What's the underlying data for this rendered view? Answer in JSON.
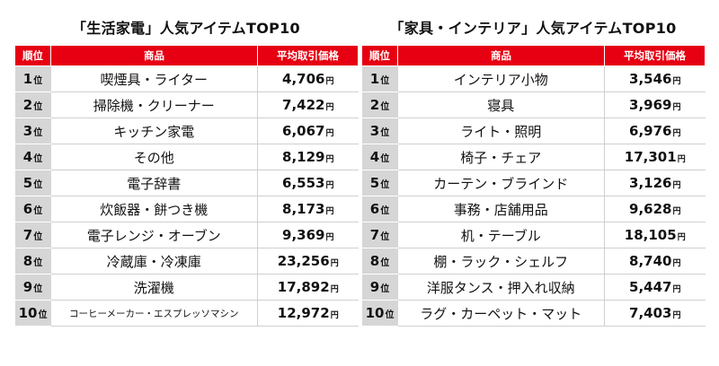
{
  "tables": [
    {
      "title": "「生活家電」人気アイテムTOP10",
      "headers": {
        "rank": "順位",
        "item": "商品",
        "price": "平均取引価格"
      },
      "rows": [
        {
          "rank": "1",
          "item": "喫煙具・ライター",
          "price": "4,706"
        },
        {
          "rank": "2",
          "item": "掃除機・クリーナー",
          "price": "7,422"
        },
        {
          "rank": "3",
          "item": "キッチン家電",
          "price": "6,067"
        },
        {
          "rank": "4",
          "item": "その他",
          "price": "8,129"
        },
        {
          "rank": "5",
          "item": "電子辞書",
          "price": "6,553"
        },
        {
          "rank": "6",
          "item": "炊飯器・餅つき機",
          "price": "8,173"
        },
        {
          "rank": "7",
          "item": "電子レンジ・オーブン",
          "price": "9,369"
        },
        {
          "rank": "8",
          "item": "冷蔵庫・冷凍庫",
          "price": "23,256"
        },
        {
          "rank": "9",
          "item": "洗濯機",
          "price": "17,892"
        },
        {
          "rank": "10",
          "item": "コーヒーメーカー・エスプレッソマシン",
          "price": "12,972"
        }
      ]
    },
    {
      "title": "「家具・インテリア」人気アイテムTOP10",
      "headers": {
        "rank": "順位",
        "item": "商品",
        "price": "平均取引価格"
      },
      "rows": [
        {
          "rank": "1",
          "item": "インテリア小物",
          "price": "3,546"
        },
        {
          "rank": "2",
          "item": "寝具",
          "price": "3,969"
        },
        {
          "rank": "3",
          "item": "ライト・照明",
          "price": "6,976"
        },
        {
          "rank": "4",
          "item": "椅子・チェア",
          "price": "17,301"
        },
        {
          "rank": "5",
          "item": "カーテン・ブラインド",
          "price": "3,126"
        },
        {
          "rank": "6",
          "item": "事務・店舗用品",
          "price": "9,628"
        },
        {
          "rank": "7",
          "item": "机・テーブル",
          "price": "18,105"
        },
        {
          "rank": "8",
          "item": "棚・ラック・シェルフ",
          "price": "8,740"
        },
        {
          "rank": "9",
          "item": "洋服タンス・押入れ収納",
          "price": "5,447"
        },
        {
          "rank": "10",
          "item": "ラグ・カーペット・マット",
          "price": "7,403"
        }
      ]
    }
  ],
  "rank_suffix": "位",
  "currency_suffix": "円"
}
